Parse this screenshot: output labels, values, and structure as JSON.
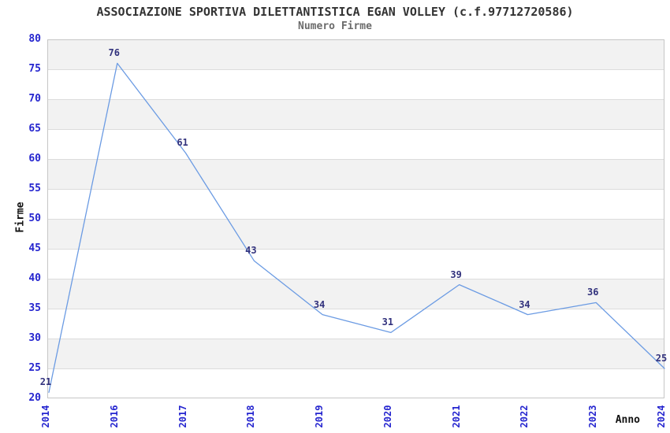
{
  "title": "ASSOCIAZIONE SPORTIVA DILETTANTISTICA EGAN VOLLEY (c.f.97712720586)",
  "subtitle": "Numero Firme",
  "chart_data": {
    "type": "line",
    "title": "ASSOCIAZIONE SPORTIVA DILETTANTISTICA EGAN VOLLEY (c.f.97712720586)",
    "subtitle": "Numero Firme",
    "xlabel": "Anno",
    "ylabel": "Firme",
    "categories": [
      "2014",
      "2016",
      "2017",
      "2018",
      "2019",
      "2020",
      "2021",
      "2022",
      "2023",
      "2024"
    ],
    "values": [
      21,
      76,
      61,
      43,
      34,
      31,
      39,
      34,
      36,
      25
    ],
    "ylim": [
      20,
      80
    ],
    "ytick_step": 5,
    "yticks": [
      20,
      25,
      30,
      35,
      40,
      45,
      50,
      55,
      60,
      65,
      70,
      75,
      80
    ],
    "grid": "horizontal-bands",
    "legend": "none",
    "colors": {
      "line": "#6b9be3",
      "tick_label": "#2525cf",
      "data_label": "#32327d",
      "band": "#f2f2f2",
      "gridline": "#dcdcdc",
      "border": "#c6c6c6",
      "title": "#333333",
      "subtitle": "#6b6b6b",
      "axis_label": "#111111"
    }
  }
}
